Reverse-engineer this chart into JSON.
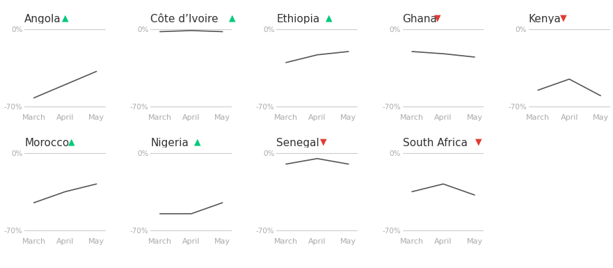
{
  "countries": [
    {
      "name": "Angola",
      "arrow": "up",
      "arrow_color": "#00c97a",
      "row": 0,
      "col": 0,
      "x": [
        0,
        1,
        2
      ],
      "y": [
        -62,
        -50,
        -38
      ]
    },
    {
      "name": "Côte d’Ivoire",
      "arrow": "up",
      "arrow_color": "#00c97a",
      "row": 0,
      "col": 1,
      "x": [
        0,
        1,
        2
      ],
      "y": [
        -2,
        -1,
        -2
      ]
    },
    {
      "name": "Ethiopia",
      "arrow": "up",
      "arrow_color": "#00c97a",
      "row": 0,
      "col": 2,
      "x": [
        0,
        1,
        2
      ],
      "y": [
        -30,
        -23,
        -20
      ]
    },
    {
      "name": "Ghana",
      "arrow": "down",
      "arrow_color": "#e03c31",
      "row": 0,
      "col": 3,
      "x": [
        0,
        1,
        2
      ],
      "y": [
        -20,
        -22,
        -25
      ]
    },
    {
      "name": "Kenya",
      "arrow": "down",
      "arrow_color": "#e03c31",
      "row": 0,
      "col": 4,
      "x": [
        0,
        1,
        2
      ],
      "y": [
        -55,
        -45,
        -60
      ]
    },
    {
      "name": "Morocco",
      "arrow": "up",
      "arrow_color": "#00c97a",
      "row": 1,
      "col": 0,
      "x": [
        0,
        1,
        2
      ],
      "y": [
        -45,
        -35,
        -28
      ]
    },
    {
      "name": "Nigeria",
      "arrow": "up",
      "arrow_color": "#00c97a",
      "row": 1,
      "col": 1,
      "x": [
        0,
        1,
        2
      ],
      "y": [
        -55,
        -55,
        -45
      ]
    },
    {
      "name": "Senegal",
      "arrow": "down",
      "arrow_color": "#e03c31",
      "row": 1,
      "col": 2,
      "x": [
        0,
        1,
        2
      ],
      "y": [
        -10,
        -5,
        -10
      ]
    },
    {
      "name": "South Africa",
      "arrow": "down",
      "arrow_color": "#e03c31",
      "row": 1,
      "col": 3,
      "x": [
        0,
        1,
        2
      ],
      "y": [
        -35,
        -28,
        -38
      ]
    }
  ],
  "x_tick_labels": [
    "March",
    "April",
    "May"
  ],
  "line_color": "#555555",
  "ref_line_color": "#cccccc",
  "bg_color": "#ffffff",
  "title_color": "#333333",
  "tick_color": "#aaaaaa",
  "grid_rows": 2,
  "grid_cols": 5,
  "title_fontsize": 11,
  "tick_fontsize": 8,
  "y_label_fontsize": 7.5,
  "arrow_fontsize": 9
}
